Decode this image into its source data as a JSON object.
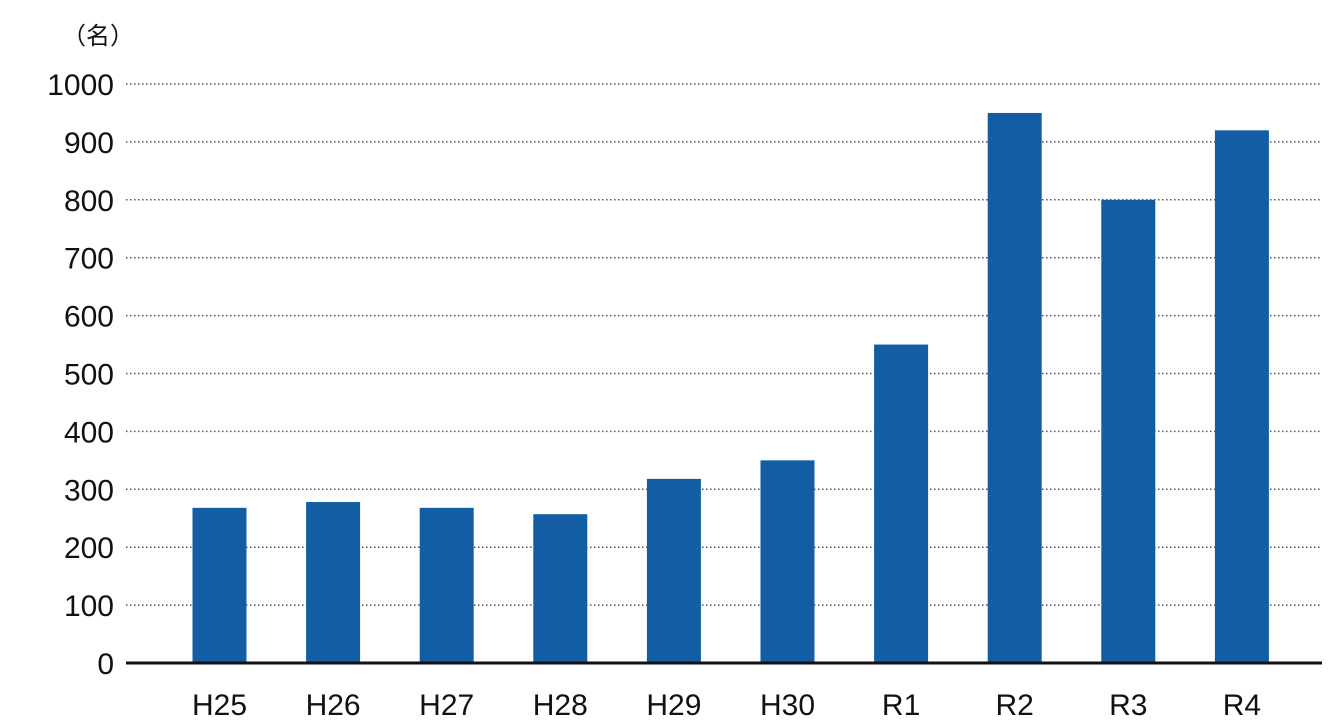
{
  "chart_data": {
    "type": "bar",
    "unit_label": "（名）",
    "categories": [
      "H25",
      "H26",
      "H27",
      "H28",
      "H29",
      "H30",
      "R1",
      "R2",
      "R3",
      "R4"
    ],
    "values": [
      268,
      278,
      268,
      257,
      318,
      350,
      550,
      950,
      800,
      920
    ],
    "ylim": [
      0,
      1000
    ],
    "yticks": [
      0,
      100,
      200,
      300,
      400,
      500,
      600,
      700,
      800,
      900,
      1000
    ],
    "grid": true,
    "grid_style": "dotted",
    "bar_color": "#125da3",
    "axis_color": "#111111",
    "grid_color": "#555555"
  }
}
